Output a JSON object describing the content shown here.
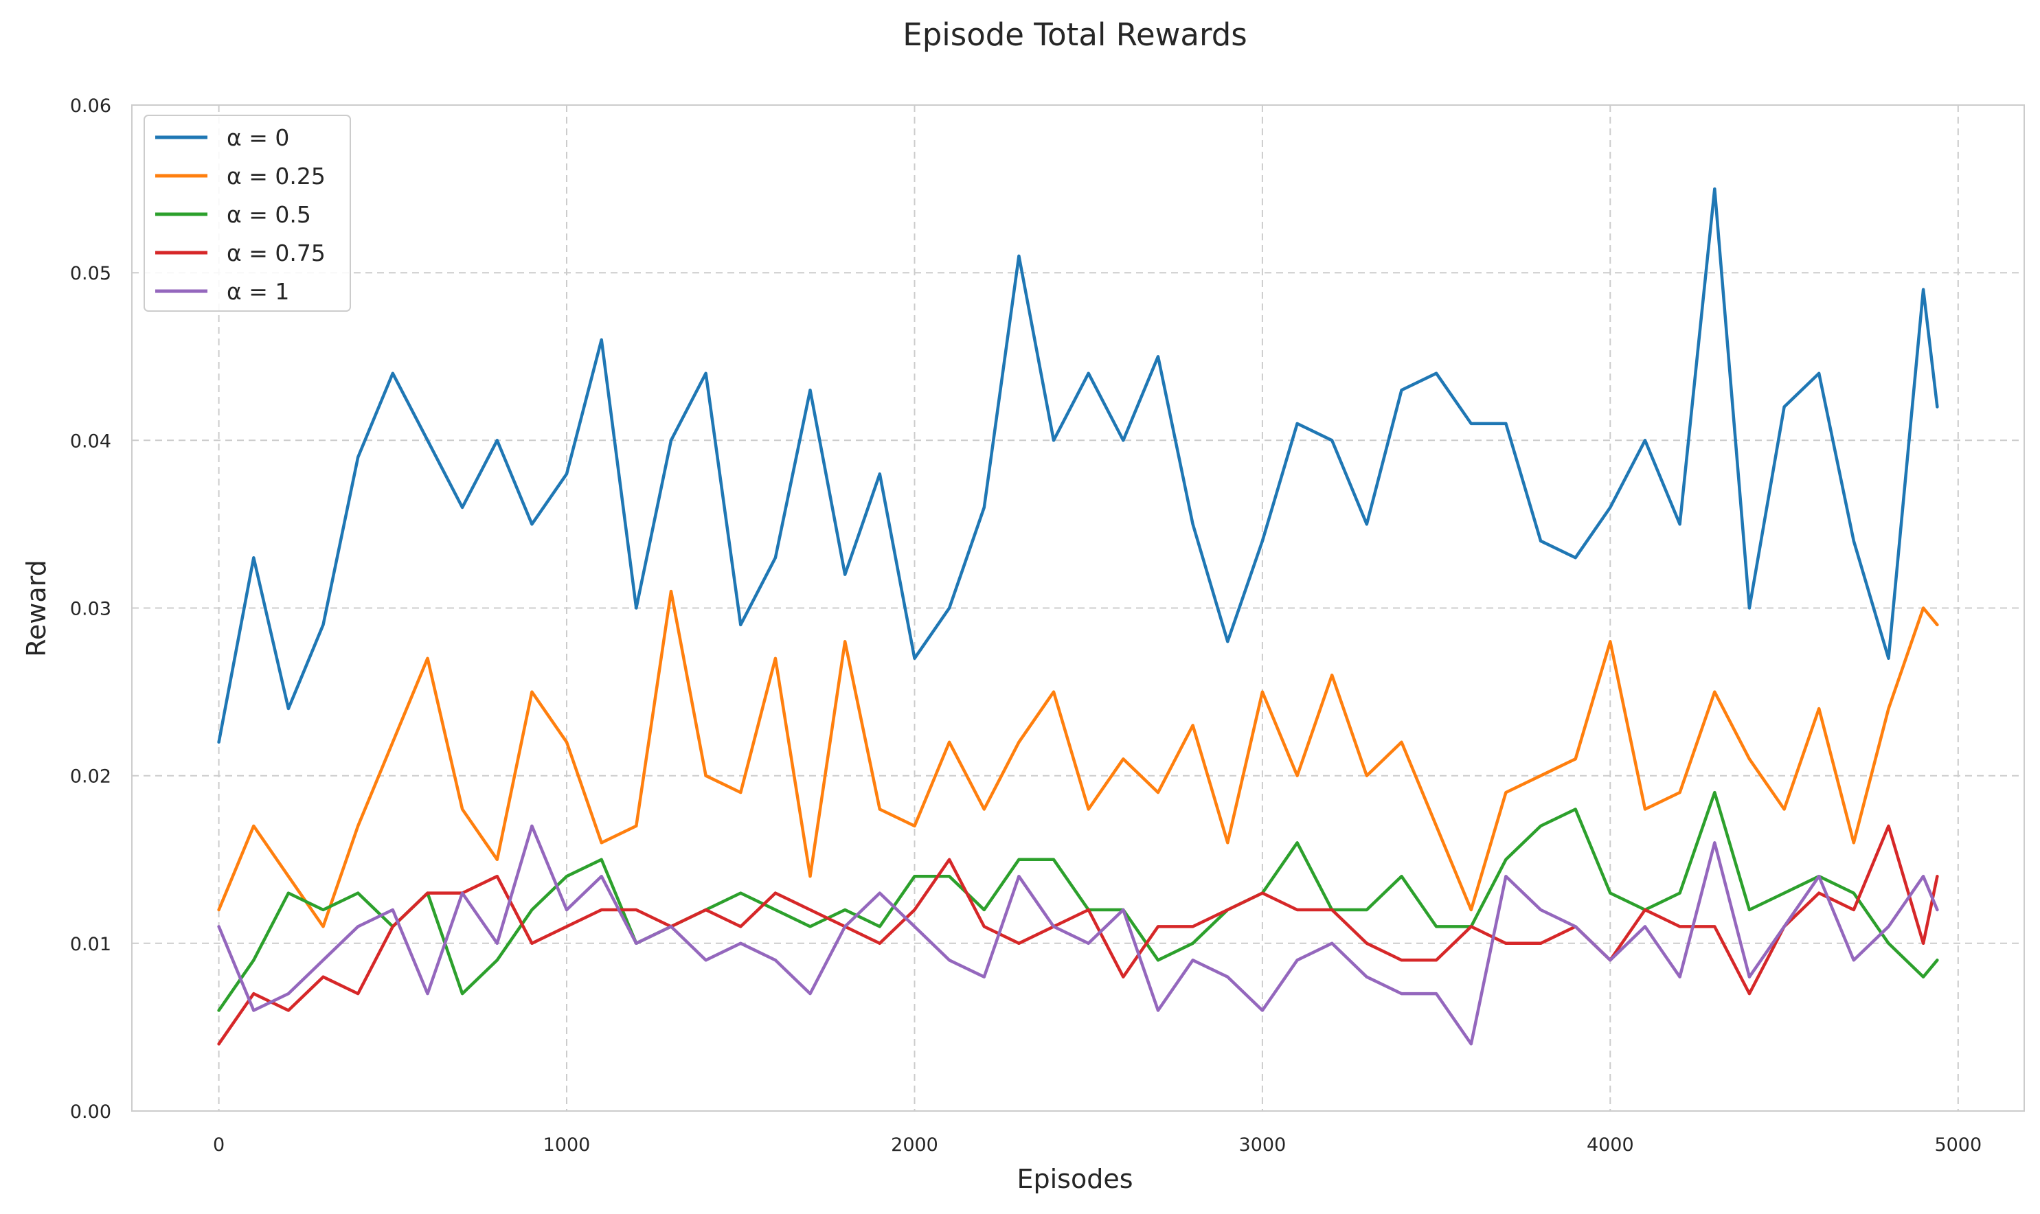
{
  "chart_data": {
    "type": "line",
    "title": "Episode Total Rewards",
    "xlabel": "Episodes",
    "ylabel": "Reward",
    "xlim": [
      -250,
      5190
    ],
    "ylim": [
      0,
      0.06
    ],
    "xticks": [
      0,
      1000,
      2000,
      3000,
      4000,
      5000
    ],
    "xtick_labels": [
      "0",
      "1000",
      "2000",
      "3000",
      "4000",
      "5000"
    ],
    "yticks": [
      0,
      0.01,
      0.02,
      0.03,
      0.04,
      0.05,
      0.06
    ],
    "ytick_labels": [
      "0.00",
      "0.01",
      "0.02",
      "0.03",
      "0.04",
      "0.05",
      "0.06"
    ],
    "grid": true,
    "legend_position": "top-left",
    "x": [
      0,
      100,
      200,
      300,
      400,
      500,
      600,
      700,
      800,
      900,
      1000,
      1100,
      1200,
      1300,
      1400,
      1500,
      1600,
      1700,
      1800,
      1900,
      2000,
      2100,
      2200,
      2300,
      2400,
      2500,
      2600,
      2700,
      2800,
      2900,
      3000,
      3100,
      3200,
      3300,
      3400,
      3500,
      3600,
      3700,
      3800,
      3900,
      4000,
      4100,
      4200,
      4300,
      4400,
      4500,
      4600,
      4700,
      4800,
      4900,
      4940
    ],
    "series": [
      {
        "name": "α = 0",
        "color": "#1f77b4",
        "values": [
          0.022,
          0.033,
          0.024,
          0.029,
          0.039,
          0.044,
          0.04,
          0.036,
          0.04,
          0.035,
          0.038,
          0.046,
          0.03,
          0.04,
          0.044,
          0.029,
          0.033,
          0.043,
          0.032,
          0.038,
          0.027,
          0.03,
          0.036,
          0.051,
          0.04,
          0.044,
          0.04,
          0.045,
          0.035,
          0.028,
          0.034,
          0.041,
          0.04,
          0.035,
          0.043,
          0.044,
          0.041,
          0.041,
          0.034,
          0.033,
          0.036,
          0.04,
          0.035,
          0.055,
          0.03,
          0.042,
          0.044,
          0.034,
          0.027,
          0.049,
          0.042
        ]
      },
      {
        "name": "α = 0.25",
        "color": "#ff7f0e",
        "values": [
          0.012,
          0.017,
          0.014,
          0.011,
          0.017,
          0.022,
          0.027,
          0.018,
          0.015,
          0.025,
          0.022,
          0.016,
          0.017,
          0.031,
          0.02,
          0.019,
          0.027,
          0.014,
          0.028,
          0.018,
          0.017,
          0.022,
          0.018,
          0.022,
          0.025,
          0.018,
          0.021,
          0.019,
          0.023,
          0.016,
          0.025,
          0.02,
          0.026,
          0.02,
          0.022,
          0.017,
          0.012,
          0.019,
          0.02,
          0.021,
          0.028,
          0.018,
          0.019,
          0.025,
          0.021,
          0.018,
          0.024,
          0.016,
          0.024,
          0.03,
          0.029
        ]
      },
      {
        "name": "α = 0.5",
        "color": "#2ca02c",
        "values": [
          0.006,
          0.009,
          0.013,
          0.012,
          0.013,
          0.011,
          0.013,
          0.007,
          0.009,
          0.012,
          0.014,
          0.015,
          0.01,
          0.011,
          0.012,
          0.013,
          0.012,
          0.011,
          0.012,
          0.011,
          0.014,
          0.014,
          0.012,
          0.015,
          0.015,
          0.012,
          0.012,
          0.009,
          0.01,
          0.012,
          0.013,
          0.016,
          0.012,
          0.012,
          0.014,
          0.011,
          0.011,
          0.015,
          0.017,
          0.018,
          0.013,
          0.012,
          0.013,
          0.019,
          0.012,
          0.013,
          0.014,
          0.013,
          0.01,
          0.008,
          0.009
        ]
      },
      {
        "name": "α = 0.75",
        "color": "#d62728",
        "values": [
          0.004,
          0.007,
          0.006,
          0.008,
          0.007,
          0.011,
          0.013,
          0.013,
          0.014,
          0.01,
          0.011,
          0.012,
          0.012,
          0.011,
          0.012,
          0.011,
          0.013,
          0.012,
          0.011,
          0.01,
          0.012,
          0.015,
          0.011,
          0.01,
          0.011,
          0.012,
          0.008,
          0.011,
          0.011,
          0.012,
          0.013,
          0.012,
          0.012,
          0.01,
          0.009,
          0.009,
          0.011,
          0.01,
          0.01,
          0.011,
          0.009,
          0.012,
          0.011,
          0.011,
          0.007,
          0.011,
          0.013,
          0.012,
          0.017,
          0.01,
          0.014
        ]
      },
      {
        "name": "α = 1",
        "color": "#9467bd",
        "values": [
          0.011,
          0.006,
          0.007,
          0.009,
          0.011,
          0.012,
          0.007,
          0.013,
          0.01,
          0.017,
          0.012,
          0.014,
          0.01,
          0.011,
          0.009,
          0.01,
          0.009,
          0.007,
          0.011,
          0.013,
          0.011,
          0.009,
          0.008,
          0.014,
          0.011,
          0.01,
          0.012,
          0.006,
          0.009,
          0.008,
          0.006,
          0.009,
          0.01,
          0.008,
          0.007,
          0.007,
          0.004,
          0.014,
          0.012,
          0.011,
          0.009,
          0.011,
          0.008,
          0.016,
          0.008,
          0.011,
          0.014,
          0.009,
          0.011,
          0.014,
          0.012
        ]
      }
    ]
  }
}
